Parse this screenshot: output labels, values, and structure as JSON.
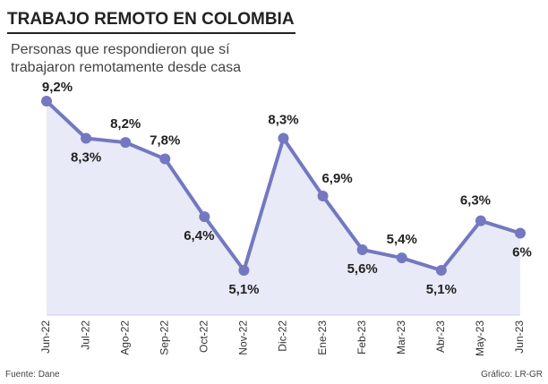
{
  "chart_data": {
    "type": "line",
    "title": "TRABAJO REMOTO EN COLOMBIA",
    "subtitle": [
      "Personas que respondieron que sí",
      "trabajaron remotamente desde casa"
    ],
    "source": "Fuente: Dane",
    "credit": "Gráfico: LR-GR",
    "categories": [
      "Jun-22",
      "Jul-22",
      "Ago-22",
      "Sep-22",
      "Oct-22",
      "Nov-22",
      "Dic-22",
      "Ene-23",
      "Feb-23",
      "Mar-23",
      "Abr-23",
      "May-23",
      "Jun-23"
    ],
    "values": [
      9.2,
      8.3,
      8.2,
      7.8,
      6.4,
      5.1,
      8.3,
      6.9,
      5.6,
      5.4,
      5.1,
      6.3,
      6
    ],
    "value_labels": [
      "9,2%",
      "8,3%",
      "8,2%",
      "7,8%",
      "6,4%",
      "5,1%",
      "8,3%",
      "6,9%",
      "5,6%",
      "5,4%",
      "5,1%",
      "6,3%",
      "6%"
    ],
    "color": "#7378c0",
    "fill": "#e9eaf7"
  }
}
